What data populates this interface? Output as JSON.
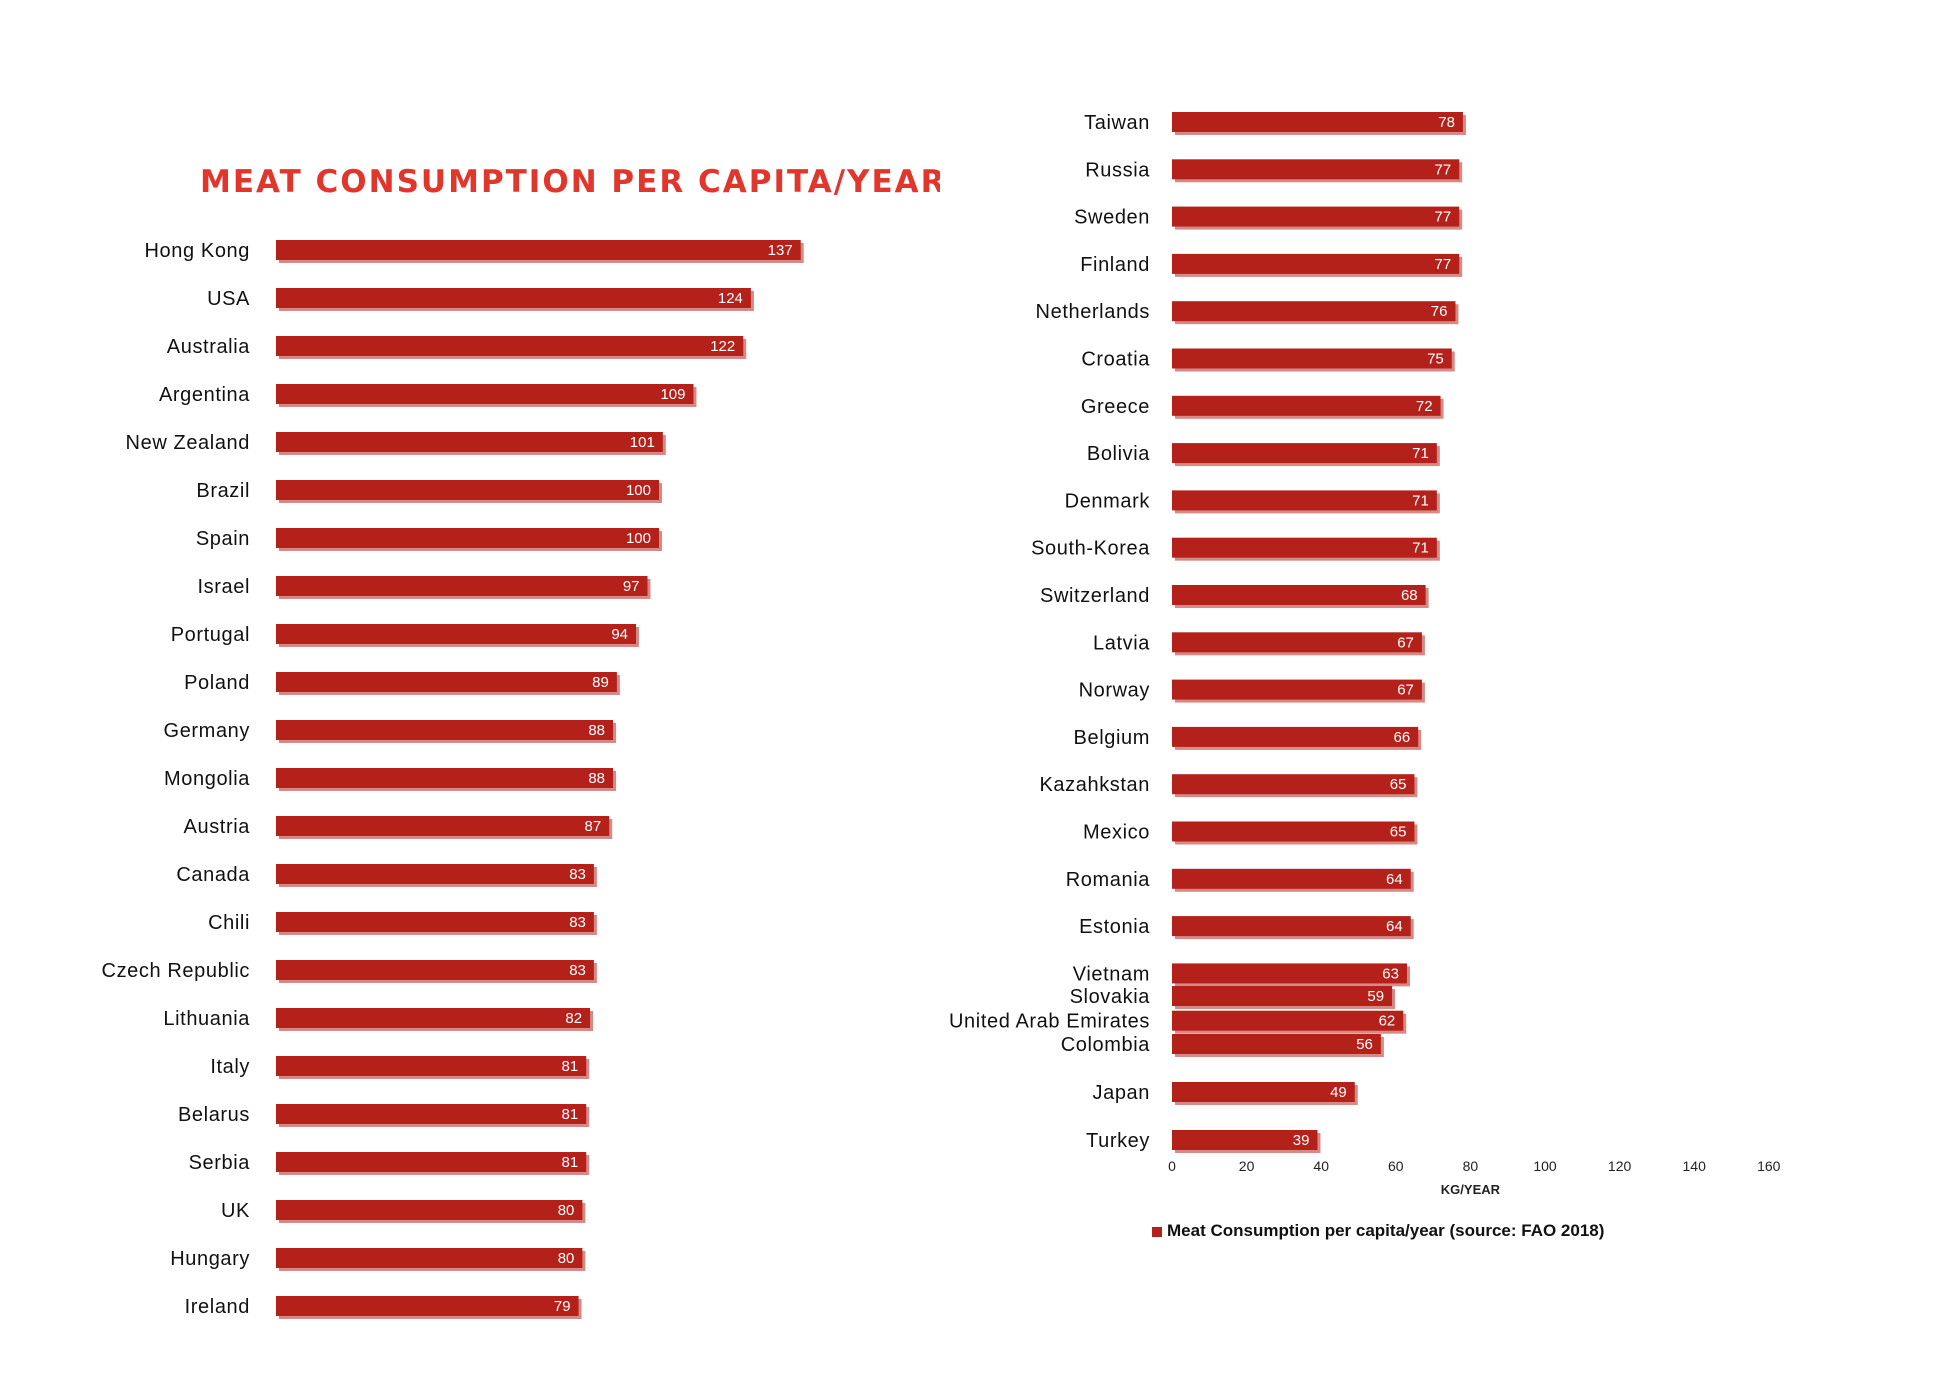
{
  "colors": {
    "bar": "#b3211a",
    "bar_shadow": "#d58a86",
    "title": "#e0362c"
  },
  "chart_data": [
    {
      "type": "bar",
      "orientation": "horizontal",
      "title": "MEAT CONSUMPTION PER CAPITA/YEAR",
      "categories": [
        "Hong Kong",
        "USA",
        "Australia",
        "Argentina",
        "New Zealand",
        "Brazil",
        "Spain",
        "Israel",
        "Portugal",
        "Poland",
        "Germany",
        "Mongolia",
        "Austria",
        "Canada",
        "Chili",
        "Czech Republic",
        "Lithuania",
        "Italy",
        "Belarus",
        "Serbia",
        "UK",
        "Hungary",
        "Ireland"
      ],
      "values": [
        137,
        124,
        122,
        109,
        101,
        100,
        100,
        97,
        94,
        89,
        88,
        88,
        87,
        83,
        83,
        83,
        82,
        81,
        81,
        81,
        80,
        80,
        79
      ],
      "xlim": [
        0,
        160
      ],
      "grid": false
    },
    {
      "type": "bar",
      "orientation": "horizontal",
      "categories": [
        "Taiwan",
        "Russia",
        "Sweden",
        "Finland",
        "Netherlands",
        "Croatia",
        "Greece",
        "Bolivia",
        "Denmark",
        "South-Korea",
        "Switzerland",
        "Latvia",
        "Norway",
        "Belgium",
        "Kazahkstan",
        "Mexico",
        "Romania",
        "Estonia",
        "Vietnam",
        "United Arab Emirates",
        "Slovakia",
        "Colombia",
        "Japan",
        "Turkey"
      ],
      "values": [
        78,
        77,
        77,
        77,
        76,
        75,
        72,
        71,
        71,
        71,
        68,
        67,
        67,
        66,
        65,
        65,
        64,
        64,
        63,
        62,
        59,
        56,
        49,
        39
      ],
      "xlim": [
        0,
        160
      ],
      "xticks": [
        "0",
        "20",
        "40",
        "60",
        "80",
        "100",
        "120",
        "140",
        "160"
      ],
      "xlabel": "KG/YEAR",
      "legend": {
        "label": "Meat Consumption per capita/year (source: FAO 2018)",
        "position": "bottom"
      },
      "grid": false
    }
  ]
}
